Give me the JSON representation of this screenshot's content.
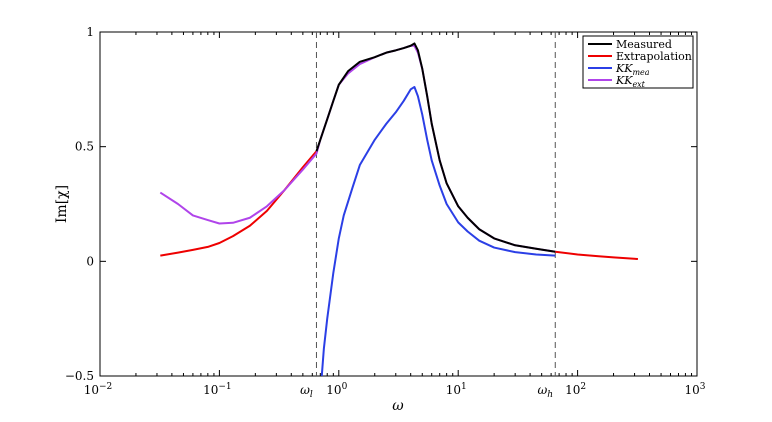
{
  "chart_data": {
    "type": "line",
    "xscale": "log",
    "xlim": [
      0.01,
      1000
    ],
    "ylim": [
      -0.5,
      1
    ],
    "xlabel": "ω",
    "ylabel": "Im[χ]",
    "grid": false,
    "legend_position": "top-right",
    "x_ticks": [
      {
        "value": 0.01,
        "base": "10",
        "exp": "−2"
      },
      {
        "value": 0.1,
        "base": "10",
        "exp": "−1"
      },
      {
        "value": 1,
        "base": "10",
        "exp": "0"
      },
      {
        "value": 10,
        "base": "10",
        "exp": "1"
      },
      {
        "value": 100,
        "base": "10",
        "exp": "2"
      },
      {
        "value": 1000,
        "base": "10",
        "exp": "3"
      }
    ],
    "y_ticks": [
      {
        "value": -0.5,
        "label": "−0.5"
      },
      {
        "value": 0,
        "label": "0"
      },
      {
        "value": 0.5,
        "label": "0.5"
      },
      {
        "value": 1,
        "label": "1"
      }
    ],
    "vlines": [
      {
        "x": 0.65,
        "label": "ω",
        "sub": "l"
      },
      {
        "x": 65,
        "label": "ω",
        "sub": "h"
      }
    ],
    "series": [
      {
        "name": "Measured",
        "sub": "",
        "color": "#000000",
        "x": [
          0.65,
          0.7,
          0.8,
          0.9,
          1.0,
          1.2,
          1.5,
          2.0,
          2.5,
          3.0,
          3.5,
          4.0,
          4.3,
          4.6,
          5.0,
          5.5,
          6.0,
          7.0,
          8.0,
          10,
          12,
          15,
          20,
          30,
          45,
          65
        ],
        "y": [
          0.48,
          0.53,
          0.62,
          0.7,
          0.77,
          0.83,
          0.87,
          0.89,
          0.91,
          0.92,
          0.93,
          0.94,
          0.95,
          0.92,
          0.84,
          0.72,
          0.6,
          0.44,
          0.34,
          0.24,
          0.19,
          0.14,
          0.1,
          0.07,
          0.055,
          0.042
        ]
      },
      {
        "name": "Extrapolation",
        "sub": "",
        "color": "#ee0000",
        "x": [
          0.032,
          0.045,
          0.06,
          0.08,
          0.1,
          0.13,
          0.18,
          0.25,
          0.35,
          0.5,
          0.65,
          65,
          100,
          150,
          200,
          320
        ],
        "y": [
          0.025,
          0.038,
          0.05,
          0.063,
          0.08,
          0.11,
          0.155,
          0.22,
          0.31,
          0.41,
          0.48,
          0.042,
          0.03,
          0.022,
          0.017,
          0.01
        ]
      },
      {
        "name": "KK",
        "sub": "mea",
        "color": "#2b3fe6",
        "x": [
          0.72,
          0.75,
          0.8,
          0.9,
          1.0,
          1.1,
          1.3,
          1.5,
          2.0,
          2.5,
          3.0,
          3.5,
          4.0,
          4.3,
          4.6,
          5.0,
          5.5,
          6.0,
          7.0,
          8.0,
          10,
          12,
          15,
          20,
          30,
          45,
          65
        ],
        "y": [
          -0.5,
          -0.38,
          -0.25,
          -0.05,
          0.1,
          0.2,
          0.32,
          0.42,
          0.53,
          0.6,
          0.65,
          0.7,
          0.75,
          0.76,
          0.72,
          0.64,
          0.53,
          0.44,
          0.33,
          0.25,
          0.17,
          0.13,
          0.09,
          0.06,
          0.04,
          0.03,
          0.025
        ]
      },
      {
        "name": "KK",
        "sub": "ext",
        "color": "#b044ea",
        "x": [
          0.032,
          0.045,
          0.06,
          0.08,
          0.1,
          0.13,
          0.18,
          0.25,
          0.35,
          0.5,
          0.65,
          0.7,
          0.8,
          0.9,
          1.0,
          1.2,
          1.5,
          2.0,
          2.5,
          3.0,
          3.5,
          4.0,
          4.3,
          4.6,
          5.0,
          5.5,
          6.0,
          7.0,
          8.0,
          10,
          12,
          15,
          20,
          30,
          45,
          65
        ],
        "y": [
          0.3,
          0.25,
          0.2,
          0.18,
          0.165,
          0.168,
          0.19,
          0.24,
          0.31,
          0.4,
          0.47,
          0.53,
          0.62,
          0.7,
          0.77,
          0.82,
          0.86,
          0.89,
          0.91,
          0.92,
          0.93,
          0.94,
          0.94,
          0.91,
          0.84,
          0.72,
          0.6,
          0.44,
          0.34,
          0.24,
          0.19,
          0.14,
          0.1,
          0.07,
          0.055,
          0.042
        ]
      }
    ]
  }
}
